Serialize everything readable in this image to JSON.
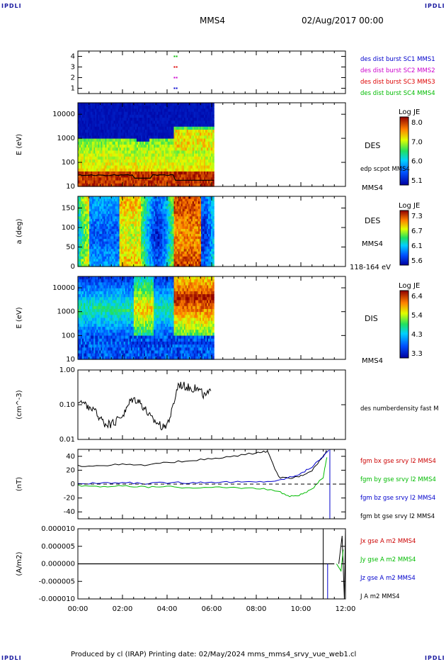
{
  "header": {
    "corner_tl": "IPDLI",
    "corner_tr": "IPDLI",
    "corner_bl": "IPDLI",
    "corner_br": "IPDLI",
    "title": "MMS4",
    "date": "02/Aug/2017 00:00"
  },
  "footer": {
    "text": "Produced by cl (IRAP)   Printing date: 02/May/2024   mms_mms4_srvy_vue_web1.cl"
  },
  "chart_data": [
    {
      "type": "scatter",
      "panel": "burst-availability",
      "ylim": [
        0.5,
        4.5
      ],
      "y_ticks": [
        "1",
        "2",
        "3",
        "4"
      ],
      "legend": [
        {
          "label": "des dist burst SC1 MMS1",
          "color": "#0000cc"
        },
        {
          "label": "des dist burst SC2 MMS2",
          "color": "#cc00cc"
        },
        {
          "label": "des dist burst SC3 MMS3",
          "color": "#dd0000"
        },
        {
          "label": "des dist burst SC4 MMS4",
          "color": "#00bb00"
        }
      ],
      "series": [
        {
          "name": "des dist burst SC1 MMS1",
          "x": [
            4.3,
            4.4
          ],
          "y": [
            1,
            1
          ]
        },
        {
          "name": "des dist burst SC2 MMS2",
          "x": [
            4.3,
            4.4
          ],
          "y": [
            2,
            2
          ]
        },
        {
          "name": "des dist burst SC3 MMS3",
          "x": [
            4.3,
            4.4
          ],
          "y": [
            3,
            3
          ]
        },
        {
          "name": "des dist burst SC4 MMS4",
          "x": [
            4.3,
            4.4
          ],
          "y": [
            4,
            4
          ]
        }
      ]
    },
    {
      "type": "heatmap",
      "panel": "des-energy",
      "ylabel": "E (eV)",
      "yscale": "log",
      "ylim": [
        10,
        30000
      ],
      "y_ticks": [
        "10",
        "100",
        "1000",
        "10000"
      ],
      "label": "DES",
      "overlay_label": "edp scpot MMS4",
      "sub_label": "MMS4",
      "colorbar": {
        "title": "Log JE",
        "ticks": [
          "8.0",
          "7.0",
          "6.0",
          "5.1"
        ],
        "range": [
          5.1,
          8.0
        ]
      },
      "x_range_data_hours": [
        0,
        6.1
      ]
    },
    {
      "type": "heatmap",
      "panel": "des-pitch-angle",
      "ylabel": "a (deg)",
      "ylim": [
        0,
        180
      ],
      "y_ticks": [
        "0",
        "50",
        "100",
        "150"
      ],
      "label": "DES",
      "sub_label": "MMS4",
      "energy_label": "118-164 eV",
      "colorbar": {
        "title": "Log JE",
        "ticks": [
          "7.3",
          "6.7",
          "6.1",
          "5.6"
        ],
        "range": [
          5.6,
          7.3
        ]
      },
      "x_range_data_hours": [
        0,
        6.1
      ]
    },
    {
      "type": "heatmap",
      "panel": "dis-energy",
      "ylabel": "E (eV)",
      "yscale": "log",
      "ylim": [
        10,
        30000
      ],
      "y_ticks": [
        "10",
        "100",
        "1000",
        "10000"
      ],
      "label": "DIS",
      "sub_label": "MMS4",
      "colorbar": {
        "title": "Log JE",
        "ticks": [
          "6.4",
          "5.4",
          "4.3",
          "3.3"
        ],
        "range": [
          3.3,
          6.4
        ]
      },
      "x_range_data_hours": [
        0,
        6.1
      ]
    },
    {
      "type": "line",
      "panel": "density",
      "ylabel": "(cm^-3)",
      "yscale": "log",
      "ylim": [
        0.01,
        1.0
      ],
      "y_ticks": [
        "0.01",
        "0.10",
        "1.00"
      ],
      "legend": [
        {
          "label": "des numberdensity fast M",
          "color": "#000000"
        }
      ],
      "series": [
        {
          "name": "des numberdensity fast M",
          "x": [
            0.0,
            0.3,
            0.6,
            0.9,
            1.2,
            1.5,
            1.8,
            2.1,
            2.4,
            2.7,
            3.0,
            3.3,
            3.6,
            3.9,
            4.2,
            4.5,
            4.8,
            5.1,
            5.4,
            5.7,
            6.0
          ],
          "y": [
            0.12,
            0.1,
            0.08,
            0.05,
            0.03,
            0.025,
            0.04,
            0.06,
            0.15,
            0.14,
            0.08,
            0.04,
            0.03,
            0.02,
            0.06,
            0.4,
            0.35,
            0.3,
            0.28,
            0.18,
            0.25
          ]
        }
      ]
    },
    {
      "type": "line",
      "panel": "magnetic-field",
      "ylabel": "(nT)",
      "ylim": [
        -50,
        50
      ],
      "y_ticks": [
        "-40",
        "-20",
        "0",
        "20",
        "40"
      ],
      "legend": [
        {
          "label": "fgm bx gse srvy l2 MMS4",
          "color": "#cc0000"
        },
        {
          "label": "fgm by gse srvy l2 MMS4",
          "color": "#00bb00"
        },
        {
          "label": "fgm bz gse srvy l2 MMS4",
          "color": "#0000cc"
        },
        {
          "label": "fgm bt gse srvy l2 MMS4",
          "color": "#000000"
        }
      ],
      "series": [
        {
          "name": "fgm bt gse srvy l2 MMS4",
          "x": [
            0,
            1,
            2,
            3,
            4,
            5,
            6,
            7,
            8,
            8.5,
            9.0,
            9.5,
            10.0,
            10.5,
            11.0,
            11.2
          ],
          "y": [
            26,
            27,
            28,
            27,
            31,
            34,
            36,
            40,
            45,
            47,
            10,
            8,
            12,
            20,
            40,
            50
          ]
        },
        {
          "name": "fgm by gse srvy l2 MMS4",
          "x": [
            0,
            1,
            2,
            3,
            4,
            5,
            6,
            7,
            8,
            9,
            9.5,
            10,
            10.5,
            11.0,
            11.2
          ],
          "y": [
            -2,
            -3,
            -3,
            -4,
            -4,
            -5,
            -5,
            -5,
            -6,
            -10,
            -18,
            -15,
            -8,
            10,
            45
          ]
        },
        {
          "name": "fgm bz gse srvy l2 MMS4",
          "x": [
            0,
            1,
            2,
            3,
            4,
            5,
            6,
            7,
            8,
            9,
            9.5,
            10,
            10.5,
            11.0,
            11.3
          ],
          "y": [
            1,
            1,
            2,
            1,
            2,
            2,
            3,
            3,
            3,
            5,
            10,
            15,
            25,
            40,
            50
          ]
        }
      ]
    },
    {
      "type": "line",
      "panel": "current-density",
      "ylabel": "(A/m2)",
      "ylim": [
        -1e-05,
        1e-05
      ],
      "y_ticks": [
        "0.000010",
        "0.000005",
        "0.000000",
        "-0.000005",
        "-0.000010"
      ],
      "legend": [
        {
          "label": "Jx gse A m2 MMS4",
          "color": "#cc0000"
        },
        {
          "label": "Jy gse A m2 MMS4",
          "color": "#00bb00"
        },
        {
          "label": "Jz gse A m2 MMS4",
          "color": "#0000cc"
        },
        {
          "label": "J A m2 MMS4",
          "color": "#000000"
        }
      ]
    }
  ],
  "time_axis": {
    "xlim": [
      0,
      12
    ],
    "tick_labels": [
      "00:00",
      "02:00",
      "04:00",
      "06:00",
      "08:00",
      "10:00",
      "12:00"
    ]
  }
}
